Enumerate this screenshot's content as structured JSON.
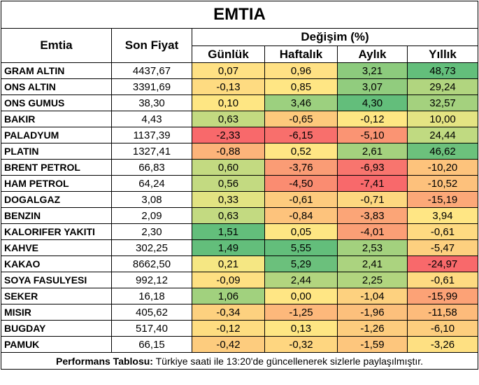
{
  "title": "EMTIA",
  "headers": {
    "emtia": "Emtia",
    "son_fiyat": "Son Fiyat",
    "degisim": "Değişim (%)",
    "gunluk": "Günlük",
    "haftalik": "Haftalık",
    "aylik": "Aylık",
    "yillik": "Yıllık"
  },
  "rows": [
    {
      "name": "GRAM ALTIN",
      "price": "4437,67",
      "d": "0,07",
      "w": "0,96",
      "m": "3,21",
      "y": "48,73",
      "colors": [
        "#ffe184",
        "#ffe184",
        "#8ccb7d",
        "#63be7b"
      ]
    },
    {
      "name": "ONS ALTIN",
      "price": "3391,69",
      "d": "-0,13",
      "w": "0,85",
      "m": "3,07",
      "y": "29,24",
      "colors": [
        "#fedb81",
        "#ffe684",
        "#91cc7e",
        "#b1d57f"
      ]
    },
    {
      "name": "ONS GUMUS",
      "price": "38,30",
      "d": "0,10",
      "w": "3,46",
      "m": "4,30",
      "y": "32,57",
      "colors": [
        "#fee683",
        "#9cd07f",
        "#63be7b",
        "#a4d17e"
      ]
    },
    {
      "name": "BAKIR",
      "price": "4,43",
      "d": "0,63",
      "w": "-0,65",
      "m": "-0,12",
      "y": "10,00",
      "colors": [
        "#c3da81",
        "#fdc97c",
        "#fee783",
        "#e4e483"
      ]
    },
    {
      "name": "PALADYUM",
      "price": "1137,39",
      "d": "-2,33",
      "w": "-6,15",
      "m": "-5,10",
      "y": "24,44",
      "colors": [
        "#f8696b",
        "#f86f6c",
        "#fa9473",
        "#c0da81"
      ]
    },
    {
      "name": "PLATIN",
      "price": "1327,41",
      "d": "-0,88",
      "w": "0,52",
      "m": "2,61",
      "y": "46,62",
      "colors": [
        "#fcb47a",
        "#ffe684",
        "#a4d17e",
        "#6cc17c"
      ]
    },
    {
      "name": "BRENT PETROL",
      "price": "66,83",
      "d": "0,60",
      "w": "-3,76",
      "m": "-6,93",
      "y": "-10,20",
      "colors": [
        "#c3da81",
        "#fa9c75",
        "#f8756e",
        "#fdc37c"
      ]
    },
    {
      "name": "HAM PETROL",
      "price": "64,24",
      "d": "0,56",
      "w": "-4,50",
      "m": "-7,41",
      "y": "-10,52",
      "colors": [
        "#c3da81",
        "#fa8c71",
        "#f8696b",
        "#fdc17c"
      ]
    },
    {
      "name": "DOGALGAZ",
      "price": "3,08",
      "d": "0,33",
      "w": "-0,61",
      "m": "-0,71",
      "y": "-15,19",
      "colors": [
        "#e2e382",
        "#fdcb7e",
        "#fdd880",
        "#fca878"
      ]
    },
    {
      "name": "BENZIN",
      "price": "2,09",
      "d": "0,63",
      "w": "-0,84",
      "m": "-3,83",
      "y": "3,94",
      "colors": [
        "#c3da81",
        "#fdc37c",
        "#fba577",
        "#ffe684"
      ]
    },
    {
      "name": "KALORIFER YAKITI",
      "price": "2,30",
      "d": "1,51",
      "w": "0,05",
      "m": "-4,01",
      "y": "-0,61",
      "colors": [
        "#63be7b",
        "#fee683",
        "#fb9f76",
        "#feda81"
      ]
    },
    {
      "name": "KAHVE",
      "price": "302,25",
      "d": "1,49",
      "w": "5,55",
      "m": "2,53",
      "y": "-5,47",
      "colors": [
        "#63be7b",
        "#63be7b",
        "#a3d17e",
        "#fdd07f"
      ]
    },
    {
      "name": "KAKAO",
      "price": "8662,50",
      "d": "0,21",
      "w": "5,29",
      "m": "2,41",
      "y": "-24,97",
      "colors": [
        "#f5e783",
        "#6bc07c",
        "#abd37f",
        "#f8696b"
      ]
    },
    {
      "name": "SOYA FASULYESI",
      "price": "992,12",
      "d": "-0,09",
      "w": "2,44",
      "m": "2,25",
      "y": "-0,61",
      "colors": [
        "#fee082",
        "#b2d57f",
        "#b1d57f",
        "#feda81"
      ]
    },
    {
      "name": "SEKER",
      "price": "16,18",
      "d": "1,06",
      "w": "0,00",
      "m": "-1,04",
      "y": "-15,99",
      "colors": [
        "#a1d17e",
        "#ffe684",
        "#fdd17f",
        "#fca276"
      ]
    },
    {
      "name": "MISIR",
      "price": "405,62",
      "d": "-0,34",
      "w": "-1,25",
      "m": "-1,96",
      "y": "-11,58",
      "colors": [
        "#fdd17f",
        "#fdb87b",
        "#fcc07c",
        "#fdbb7b"
      ]
    },
    {
      "name": "BUGDAY",
      "price": "517,40",
      "d": "-0,12",
      "w": "0,13",
      "m": "-1,26",
      "y": "-6,10",
      "colors": [
        "#fedd81",
        "#fee683",
        "#fdcd7e",
        "#fdce7e"
      ]
    },
    {
      "name": "PAMUK",
      "price": "66,15",
      "d": "-0,42",
      "w": "-0,32",
      "m": "-1,59",
      "y": "-3,26",
      "colors": [
        "#fdcc7e",
        "#fed680",
        "#fdc67d",
        "#fee082"
      ]
    }
  ],
  "footer": {
    "bold": "Performans Tablosu:",
    "text": " Türkiye saati ile 13:20'de güncellenerek sizlerle paylaşılmıştır."
  }
}
